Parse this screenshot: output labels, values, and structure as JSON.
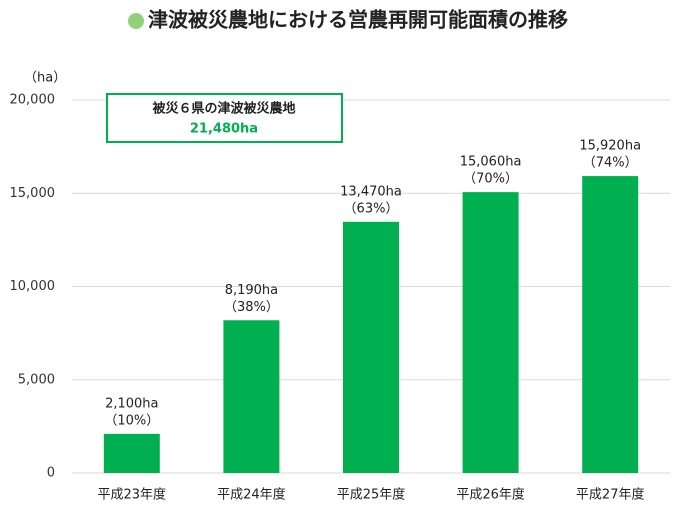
{
  "chart_data": {
    "type": "bar",
    "title": "津波被災農地における営農再開可能面積の推移",
    "y_unit": "（ha）",
    "categories": [
      "平成23年度",
      "平成24年度",
      "平成25年度",
      "平成26年度",
      "平成27年度"
    ],
    "values": [
      2100,
      8190,
      13470,
      15060,
      15920
    ],
    "value_labels": [
      "2,100ha",
      "8,190ha",
      "13,470ha",
      "15,060ha",
      "15,920ha"
    ],
    "shares": [
      10,
      38,
      63,
      70,
      74
    ],
    "share_labels": [
      "（10%）",
      "（38%）",
      "（63%）",
      "（70%）",
      "（74%）"
    ],
    "color": "#00b050",
    "title_bullet_color": "#92d07c",
    "ylim": [
      0,
      20000
    ],
    "yticks": [
      0,
      {
        "value": 5000,
        "label": "5,000"
      },
      {
        "value": 10000,
        "label": "10,000"
      },
      {
        "value": 15000,
        "label": "15,000"
      },
      {
        "value": 20000,
        "label": "20,000"
      }
    ],
    "grid": true,
    "annotation": {
      "text": "被災６県の津波被災農地",
      "value": 21480,
      "value_label": "21,480ha",
      "color": "#00b050"
    }
  }
}
